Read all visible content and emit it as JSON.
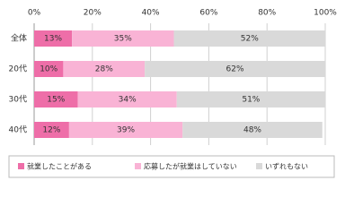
{
  "chart_data": {
    "type": "stacked-bar-horizontal",
    "categories": [
      "全体",
      "20代",
      "30代",
      "40代"
    ],
    "series": [
      {
        "name": "就業したことがある",
        "color": "#ee6ea8",
        "values": [
          13,
          10,
          15,
          12
        ],
        "value_labels": [
          "13%",
          "10%",
          "15%",
          "12%"
        ]
      },
      {
        "name": "応募したが就業はしていない",
        "color": "#f9b3d5",
        "values": [
          35,
          28,
          34,
          39
        ],
        "value_labels": [
          "35%",
          "28%",
          "34%",
          "39%"
        ]
      },
      {
        "name": "いずれもない",
        "color": "#d9d9d9",
        "values": [
          52,
          62,
          51,
          48
        ],
        "value_labels": [
          "52%",
          "62%",
          "51%",
          "48%"
        ]
      }
    ],
    "xlim": [
      0,
      100
    ],
    "xticks": [
      {
        "value": 0,
        "label": "0%"
      },
      {
        "value": 20,
        "label": "20%"
      },
      {
        "value": 40,
        "label": "40%"
      },
      {
        "value": 60,
        "label": "60%"
      },
      {
        "value": 80,
        "label": "80%"
      },
      {
        "value": 100,
        "label": "100%"
      }
    ],
    "grid": true
  }
}
